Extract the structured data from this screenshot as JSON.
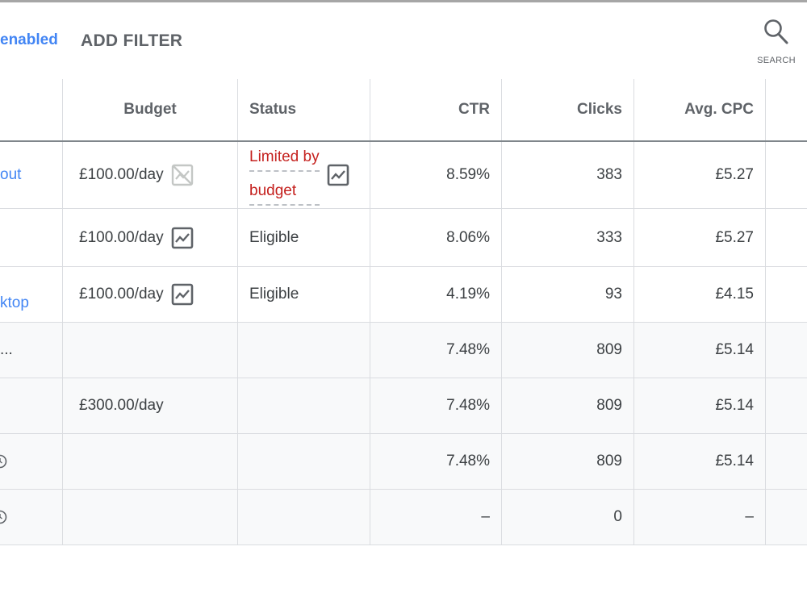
{
  "toolbar": {
    "filter_chip": "enabled",
    "add_filter": "ADD FILTER",
    "search_label": "SEARCH"
  },
  "table": {
    "columns": {
      "budget": "Budget",
      "status": "Status",
      "ctr": "CTR",
      "clicks": "Clicks",
      "avg_cpc": "Avg. CPC"
    },
    "rows": [
      {
        "name": "out",
        "budget": "£100.00/day",
        "budget_icon": "chart-disabled-icon",
        "status_line1": "Limited by",
        "status_line2": "budget",
        "ctr": "8.59%",
        "clicks": "383",
        "avg_cpc": "£5.27"
      },
      {
        "name": "",
        "budget": "£100.00/day",
        "budget_icon": "chart-icon",
        "status": "Eligible",
        "ctr": "8.06%",
        "clicks": "333",
        "avg_cpc": "£5.27"
      },
      {
        "name": "ktop",
        "budget": "£100.00/day",
        "budget_icon": "chart-icon",
        "status": "Eligible",
        "ctr": "4.19%",
        "clicks": "93",
        "avg_cpc": "£4.15"
      },
      {
        "name": "...",
        "budget": "",
        "status": "",
        "ctr": "7.48%",
        "clicks": "809",
        "avg_cpc": "£5.14"
      },
      {
        "name": "",
        "budget": "£300.00/day",
        "status": "",
        "ctr": "7.48%",
        "clicks": "809",
        "avg_cpc": "£5.14"
      },
      {
        "name_icon": "clock-icon",
        "budget": "",
        "status": "",
        "ctr": "7.48%",
        "clicks": "809",
        "avg_cpc": "£5.14"
      },
      {
        "name_icon": "clock-icon",
        "budget": "",
        "status": "",
        "ctr": "–",
        "clicks": "0",
        "avg_cpc": "–"
      }
    ]
  },
  "colors": {
    "link": "#4285f4",
    "limited": "#c5221f",
    "text": "#3c4043",
    "shaded_row": "#f8f9fa",
    "divider": "#dadce0"
  }
}
